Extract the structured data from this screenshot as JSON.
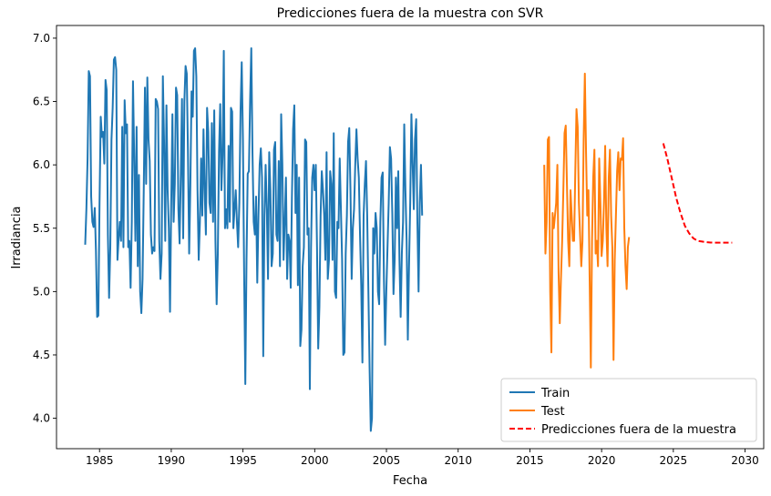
{
  "chart_data": {
    "type": "line",
    "title": "Predicciones fuera de la muestra con SVR",
    "xlabel": "Fecha",
    "ylabel": "Irradiancia",
    "x_range": [
      1982,
      2031.3
    ],
    "ylim": [
      3.76,
      7.1
    ],
    "x_ticks": [
      "1985",
      "1990",
      "1995",
      "2000",
      "2005",
      "2010",
      "2015",
      "2020",
      "2025",
      "2030"
    ],
    "y_ticks": [
      "4.0",
      "4.5",
      "5.0",
      "5.5",
      "6.0",
      "6.5",
      "7.0"
    ],
    "grid": false,
    "legend_position": "lower-right",
    "series": [
      {
        "name": "Train",
        "color": "#1f77b4",
        "style": "solid",
        "x_start": 1984.0,
        "x_step": 0.0833,
        "values": [
          5.37,
          5.65,
          6.05,
          6.74,
          6.7,
          5.75,
          5.55,
          5.51,
          5.66,
          5.32,
          4.8,
          4.81,
          5.7,
          6.38,
          6.22,
          6.26,
          6.01,
          6.67,
          6.59,
          5.45,
          4.95,
          5.35,
          6.2,
          6.45,
          6.83,
          6.85,
          6.75,
          5.25,
          5.42,
          5.55,
          5.4,
          6.3,
          5.35,
          6.51,
          6.25,
          6.32,
          5.35,
          5.4,
          5.03,
          5.55,
          6.66,
          6.06,
          5.4,
          6.3,
          5.2,
          5.92,
          5.0,
          4.83,
          5.1,
          5.8,
          6.61,
          5.85,
          6.69,
          6.2,
          6.03,
          5.45,
          5.3,
          5.35,
          5.32,
          6.52,
          6.5,
          6.44,
          5.4,
          5.1,
          5.3,
          6.7,
          6.18,
          5.4,
          6.47,
          5.8,
          5.5,
          4.84,
          5.7,
          6.4,
          5.55,
          5.85,
          6.61,
          6.55,
          5.65,
          5.38,
          5.92,
          6.52,
          5.42,
          6.5,
          6.78,
          6.72,
          6.1,
          5.3,
          5.83,
          6.58,
          6.38,
          6.9,
          6.92,
          6.7,
          5.8,
          5.25,
          5.55,
          6.05,
          5.6,
          6.28,
          5.8,
          5.45,
          6.45,
          6.26,
          5.7,
          5.62,
          6.33,
          5.55,
          6.43,
          5.4,
          4.9,
          5.3,
          6.1,
          6.48,
          5.8,
          6.08,
          6.9,
          5.5,
          5.65,
          5.5,
          6.15,
          5.55,
          6.45,
          6.42,
          5.5,
          5.65,
          5.8,
          5.55,
          5.35,
          5.7,
          6.42,
          6.81,
          6.2,
          5.15,
          4.27,
          5.25,
          5.93,
          5.95,
          6.5,
          6.92,
          6.1,
          5.55,
          5.45,
          5.75,
          5.07,
          5.6,
          6.0,
          6.13,
          5.9,
          4.49,
          5.6,
          6.0,
          5.65,
          5.1,
          6.1,
          5.8,
          5.2,
          5.3,
          6.12,
          6.18,
          5.45,
          5.4,
          6.03,
          5.2,
          6.4,
          6.0,
          5.25,
          5.55,
          5.9,
          5.1,
          5.45,
          5.4,
          5.03,
          5.74,
          6.28,
          6.47,
          5.62,
          6.0,
          5.05,
          5.9,
          4.57,
          4.7,
          5.2,
          5.35,
          6.2,
          6.18,
          5.45,
          5.5,
          4.23,
          5.35,
          5.9,
          6.0,
          5.8,
          6.0,
          5.35,
          4.55,
          4.88,
          5.6,
          5.95,
          5.8,
          5.6,
          5.25,
          6.1,
          5.1,
          5.25,
          5.95,
          5.85,
          5.25,
          6.25,
          5.0,
          4.95,
          5.55,
          5.5,
          6.05,
          5.65,
          5.25,
          4.5,
          4.52,
          5.3,
          5.6,
          6.18,
          6.29,
          5.8,
          5.1,
          5.5,
          5.65,
          6.0,
          6.28,
          6.05,
          5.9,
          5.45,
          5.05,
          4.44,
          5.6,
          5.85,
          6.03,
          5.6,
          5.0,
          4.4,
          3.9,
          4.0,
          5.5,
          5.3,
          5.62,
          5.5,
          5.0,
          4.9,
          5.55,
          5.9,
          5.94,
          5.1,
          4.58,
          5.0,
          5.35,
          5.7,
          6.14,
          6.05,
          5.62,
          4.98,
          5.25,
          5.9,
          5.5,
          5.95,
          5.25,
          4.8,
          5.3,
          5.55,
          6.32,
          5.8,
          5.4,
          4.62,
          5.2,
          5.7,
          6.4,
          6.02,
          5.65,
          6.2,
          6.36,
          5.55,
          5.0,
          5.7,
          6.0,
          5.6
        ]
      },
      {
        "name": "Test",
        "color": "#ff7f0e",
        "style": "solid",
        "x_start": 2016.0,
        "x_step": 0.0833,
        "values": [
          6.0,
          5.3,
          5.55,
          6.2,
          6.22,
          5.0,
          4.52,
          5.62,
          5.5,
          5.6,
          5.7,
          6.0,
          5.15,
          4.75,
          5.1,
          5.4,
          5.8,
          6.25,
          6.31,
          5.85,
          5.4,
          5.2,
          5.8,
          5.6,
          5.4,
          5.4,
          5.95,
          6.44,
          6.3,
          5.7,
          5.45,
          5.2,
          5.4,
          6.2,
          6.72,
          6.1,
          5.6,
          5.8,
          5.1,
          4.4,
          5.4,
          5.9,
          6.12,
          5.3,
          5.4,
          5.2,
          6.05,
          5.7,
          5.28,
          5.4,
          5.7,
          6.15,
          5.5,
          5.2,
          5.9,
          6.12,
          5.6,
          5.35,
          4.46,
          5.25,
          5.6,
          5.95,
          6.1,
          5.8,
          6.05,
          6.04,
          6.21,
          5.5,
          5.2,
          5.02,
          5.35,
          5.43
        ]
      },
      {
        "name": "Predicciones fuera de la muestra",
        "color": "#ff0000",
        "style": "dashed",
        "x_start": 2024.3,
        "x_step": 0.3,
        "values": [
          6.17,
          6.04,
          5.89,
          5.74,
          5.62,
          5.52,
          5.46,
          5.42,
          5.4,
          5.395,
          5.39,
          5.387,
          5.386,
          5.386,
          5.386,
          5.386,
          5.386
        ]
      }
    ]
  }
}
